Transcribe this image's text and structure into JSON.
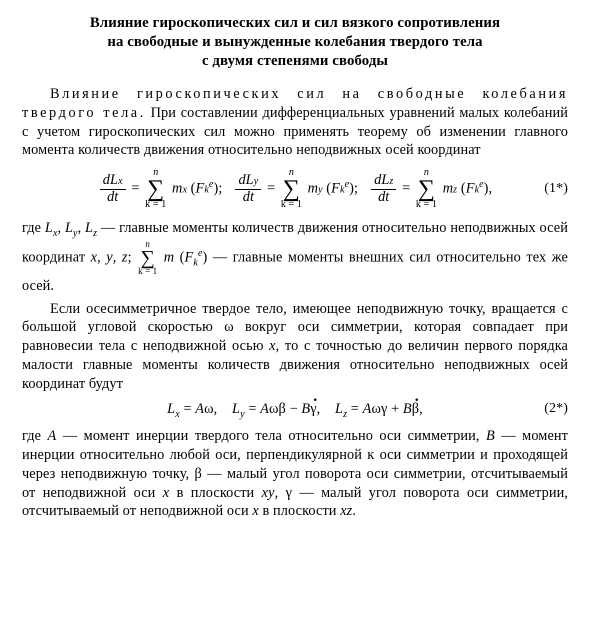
{
  "title_l1": "Влияние гироскопических сил и сил вязкого сопротивления",
  "title_l2": "на свободные и вынужденные колебания твердого тела",
  "title_l3": "с двумя степенями свободы",
  "p1_lead": "Влияние гироскопических сил на свободные колебания твердого тела.",
  "p1_rest": " При составлении дифференциальных уравнений малых колебаний с учетом гироскопических сил можно применять теорему об изменении главного момента количеств движения относительно неподвижных осей координат",
  "eq1": {
    "sum_upper": "n",
    "sum_lower": "k = 1",
    "dLx_num": "dL",
    "x_sub": "x",
    "dLy_num": "dL",
    "y_sub": "y",
    "dLz_num": "dL",
    "z_sub": "z",
    "dt": "dt",
    "mx": "m",
    "Fk": "F",
    "k_sub": "k",
    "e_sup": "e",
    "num": "(1*)"
  },
  "p2a": "где ",
  "p2b": " — главные моменты количеств движения относительно неподвижных осей координат ",
  "p2c": " — главные моменты внешних сил относительно тех же осей.",
  "Lx": "L",
  "Ly": "L",
  "Lz": "L",
  "x": "x",
  "y": "y",
  "z": "z",
  "m": "m",
  "F": "F",
  "p3": "Если осесимметричное твердое тело, имеющее неподвижную точку, вращается с большой угловой скоростью ω вокруг оси симметрии, которая совпадает при равновесии тела с неподвижной осью ",
  "p3b": ", то с точностью до величин первого порядка малости главные моменты количеств движения относительно неподвижных осей координат будут",
  "eq2": {
    "Lx": "L",
    "x": "x",
    "A": "A",
    "w": "ω",
    "Ly": "L",
    "y": "y",
    "B": "B",
    "beta": "β",
    "gamma": "γ",
    "Lz": "L",
    "z": "z",
    "num": "(2*)"
  },
  "p4a": "где ",
  "p4A": "A",
  "p4b": " — момент инерции твердого тела относительно оси симметрии, ",
  "p4B": "B",
  "p4c": " — момент инерции относительно любой оси, перпендикулярной к оси симметрии и проходящей через неподвижную точку, β — малый угол поворота оси симметрии, отсчитываемый от неподвижной оси ",
  "p4d": " в плоскости ",
  "p4xy": "xy",
  "p4e": ", γ — малый угол поворота оси симметрии, отсчитываемый от неподвижной оси ",
  "p4f": " в плоскости ",
  "p4xz": "xz",
  "dot": "."
}
